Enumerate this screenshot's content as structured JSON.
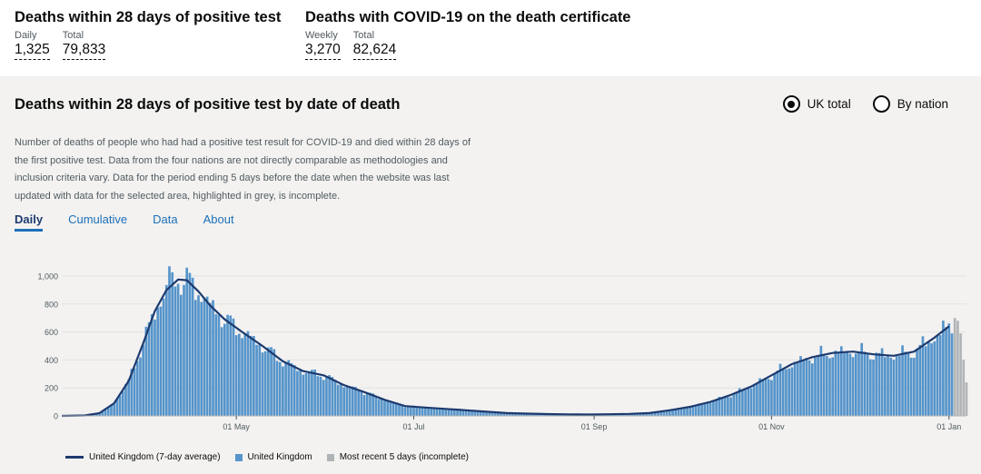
{
  "headlines": [
    {
      "title": "Deaths within 28 days of positive test",
      "metrics": [
        {
          "label": "Daily",
          "value": "1,325"
        },
        {
          "label": "Total",
          "value": "79,833"
        }
      ]
    },
    {
      "title": "Deaths with COVID-19 on the death certificate",
      "metrics": [
        {
          "label": "Weekly",
          "value": "3,270"
        },
        {
          "label": "Total",
          "value": "82,624"
        }
      ]
    }
  ],
  "card": {
    "title": "Deaths within 28 days of positive test by date of death",
    "radios": [
      {
        "label": "UK total",
        "selected": true
      },
      {
        "label": "By nation",
        "selected": false
      }
    ],
    "description": "Number of deaths of people who had had a positive test result for COVID-19 and died within 28 days of the first positive test. Data from the four nations are not directly comparable as methodologies and inclusion criteria vary. Data for the period ending 5 days before the date when the website was last updated with data for the selected area, highlighted in grey, is incomplete.",
    "tabs": [
      "Daily",
      "Cumulative",
      "Data",
      "About"
    ],
    "active_tab": "Daily"
  },
  "colors": {
    "bar": "#5694ca",
    "line": "#1d3a6e",
    "incomplete": "#b1b4b6",
    "tab_link": "#1d70b8"
  },
  "chart_data": {
    "type": "bar",
    "ylim": [
      0,
      1000
    ],
    "yticks": [
      0,
      200,
      400,
      600,
      800,
      1000
    ],
    "ytick_labels": [
      "0",
      "200",
      "400",
      "600",
      "800",
      "1,000"
    ],
    "x_range": [
      "2020-03-02",
      "2021-01-07"
    ],
    "xticks": [
      {
        "date": "2020-05-01",
        "label": "01 May"
      },
      {
        "date": "2020-07-01",
        "label": "01 Jul"
      },
      {
        "date": "2020-09-01",
        "label": "01 Sep"
      },
      {
        "date": "2020-11-01",
        "label": "01 Nov"
      },
      {
        "date": "2021-01-01",
        "label": "01 Jan"
      }
    ],
    "series": [
      {
        "name": "United Kingdom (7-day average)",
        "kind": "line",
        "points": [
          [
            "2020-03-02",
            0
          ],
          [
            "2020-03-10",
            3
          ],
          [
            "2020-03-15",
            20
          ],
          [
            "2020-03-20",
            90
          ],
          [
            "2020-03-25",
            250
          ],
          [
            "2020-03-30",
            520
          ],
          [
            "2020-04-03",
            750
          ],
          [
            "2020-04-07",
            900
          ],
          [
            "2020-04-11",
            975
          ],
          [
            "2020-04-14",
            970
          ],
          [
            "2020-04-18",
            890
          ],
          [
            "2020-04-22",
            790
          ],
          [
            "2020-04-27",
            690
          ],
          [
            "2020-05-03",
            600
          ],
          [
            "2020-05-10",
            500
          ],
          [
            "2020-05-17",
            390
          ],
          [
            "2020-05-24",
            320
          ],
          [
            "2020-05-31",
            290
          ],
          [
            "2020-06-07",
            220
          ],
          [
            "2020-06-14",
            170
          ],
          [
            "2020-06-21",
            115
          ],
          [
            "2020-06-28",
            70
          ],
          [
            "2020-07-05",
            60
          ],
          [
            "2020-07-12",
            50
          ],
          [
            "2020-07-19",
            40
          ],
          [
            "2020-07-26",
            30
          ],
          [
            "2020-08-02",
            20
          ],
          [
            "2020-08-09",
            16
          ],
          [
            "2020-08-16",
            13
          ],
          [
            "2020-08-23",
            11
          ],
          [
            "2020-08-30",
            10
          ],
          [
            "2020-09-06",
            12
          ],
          [
            "2020-09-13",
            14
          ],
          [
            "2020-09-20",
            20
          ],
          [
            "2020-09-27",
            40
          ],
          [
            "2020-10-04",
            65
          ],
          [
            "2020-10-11",
            100
          ],
          [
            "2020-10-18",
            150
          ],
          [
            "2020-10-25",
            210
          ],
          [
            "2020-11-01",
            290
          ],
          [
            "2020-11-08",
            370
          ],
          [
            "2020-11-15",
            420
          ],
          [
            "2020-11-22",
            450
          ],
          [
            "2020-11-29",
            460
          ],
          [
            "2020-12-06",
            440
          ],
          [
            "2020-12-13",
            430
          ],
          [
            "2020-12-20",
            460
          ],
          [
            "2020-12-27",
            560
          ],
          [
            "2021-01-01",
            640
          ]
        ]
      },
      {
        "name": "United Kingdom",
        "kind": "bar",
        "note": "daily values jitter around the 7-day average; peak ~1,070 on 8 Apr 2020"
      },
      {
        "name": "Most recent 5 days (incomplete)",
        "kind": "bar",
        "dates": [
          "2021-01-03",
          "2021-01-04",
          "2021-01-05",
          "2021-01-06",
          "2021-01-07"
        ],
        "values": [
          700,
          680,
          590,
          400,
          240
        ]
      }
    ],
    "bar_peak": {
      "date": "2020-04-08",
      "value": 1070
    }
  }
}
